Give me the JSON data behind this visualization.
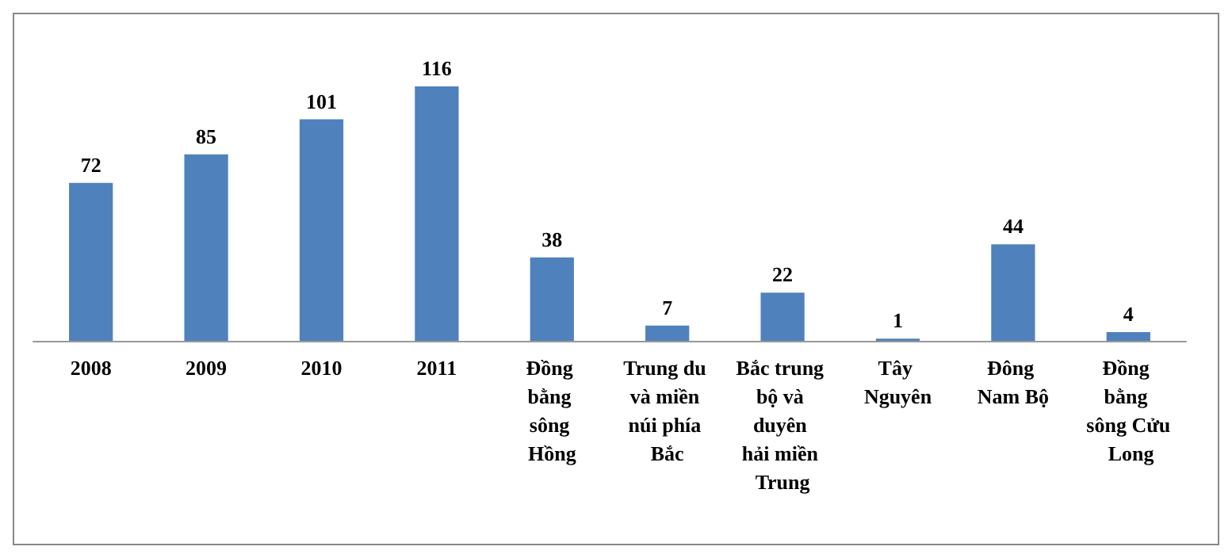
{
  "chart_data": {
    "type": "bar",
    "categories": [
      "2008",
      "2009",
      "2010",
      "2011",
      "Đồng bằng sông Hồng",
      "Trung du và miền núi phía Bắc",
      "Bắc trung bộ và duyên hải miền Trung",
      "Tây Nguyên",
      "Đông Nam Bộ",
      "Đồng bằng sông Cửu Long"
    ],
    "values": [
      72,
      85,
      101,
      116,
      38,
      7,
      22,
      1,
      44,
      4
    ],
    "color": "#4f81bd",
    "data_labels": true
  }
}
